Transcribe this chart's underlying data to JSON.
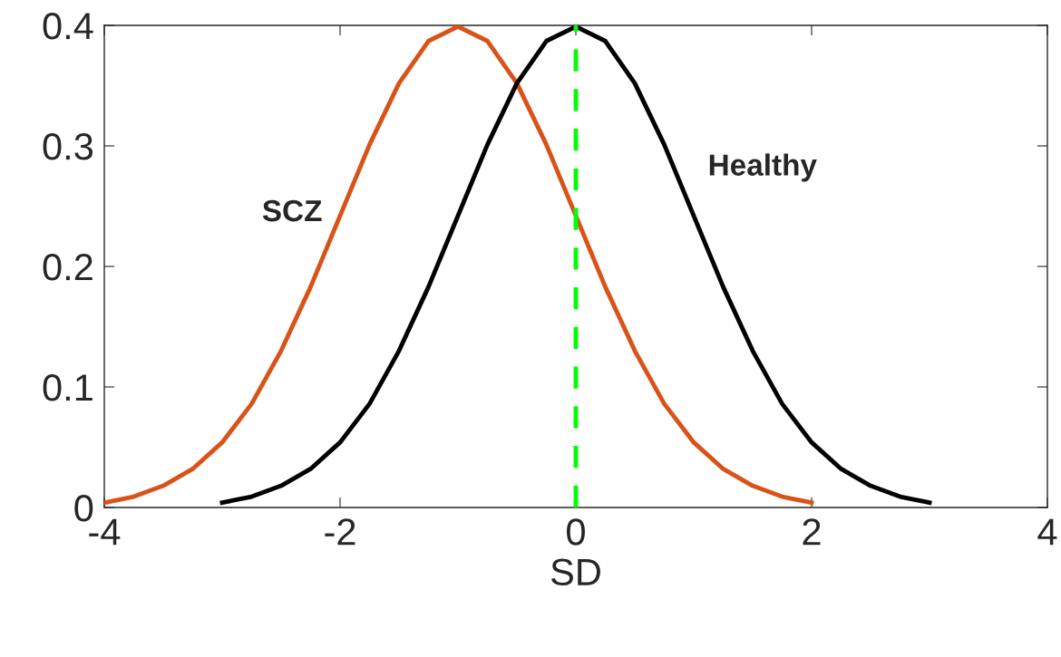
{
  "chart_data": {
    "type": "line",
    "xlabel": "SD",
    "xlim": [
      -4,
      4
    ],
    "xticks": [
      -4,
      -2,
      0,
      2,
      4
    ],
    "ylim": [
      0,
      0.4
    ],
    "yticks": [
      0,
      0.1,
      0.2,
      0.3,
      0.4
    ],
    "grid": false,
    "legend": false,
    "marker": "none",
    "line_style": "solid",
    "series": [
      {
        "name": "SCZ",
        "color": "#d95319",
        "x": [
          -4,
          -3.75,
          -3.5,
          -3.25,
          -3,
          -2.75,
          -2.5,
          -2.25,
          -2,
          -1.75,
          -1.5,
          -1.25,
          -1,
          -0.75,
          -0.5,
          -0.25,
          0,
          0.25,
          0.5,
          0.75,
          1,
          1.25,
          1.5,
          1.75,
          2
        ],
        "values": [
          0.004,
          0.009,
          0.018,
          0.032,
          0.054,
          0.086,
          0.13,
          0.183,
          0.242,
          0.301,
          0.352,
          0.387,
          0.399,
          0.387,
          0.352,
          0.301,
          0.242,
          0.183,
          0.13,
          0.086,
          0.054,
          0.032,
          0.018,
          0.009,
          0.004
        ]
      },
      {
        "name": "Healthy",
        "color": "#000000",
        "x": [
          -3,
          -2.75,
          -2.5,
          -2.25,
          -2,
          -1.75,
          -1.5,
          -1.25,
          -1,
          -0.75,
          -0.5,
          -0.25,
          0,
          0.25,
          0.5,
          0.75,
          1,
          1.25,
          1.5,
          1.75,
          2,
          2.25,
          2.5,
          2.75,
          3
        ],
        "values": [
          0.004,
          0.009,
          0.018,
          0.032,
          0.054,
          0.086,
          0.13,
          0.183,
          0.242,
          0.301,
          0.352,
          0.387,
          0.399,
          0.387,
          0.352,
          0.301,
          0.242,
          0.183,
          0.13,
          0.086,
          0.054,
          0.032,
          0.018,
          0.009,
          0.004
        ]
      }
    ],
    "ref_lines": [
      {
        "axis": "x",
        "value": 0,
        "color": "#00ff00",
        "line_style": "dashed"
      }
    ]
  }
}
